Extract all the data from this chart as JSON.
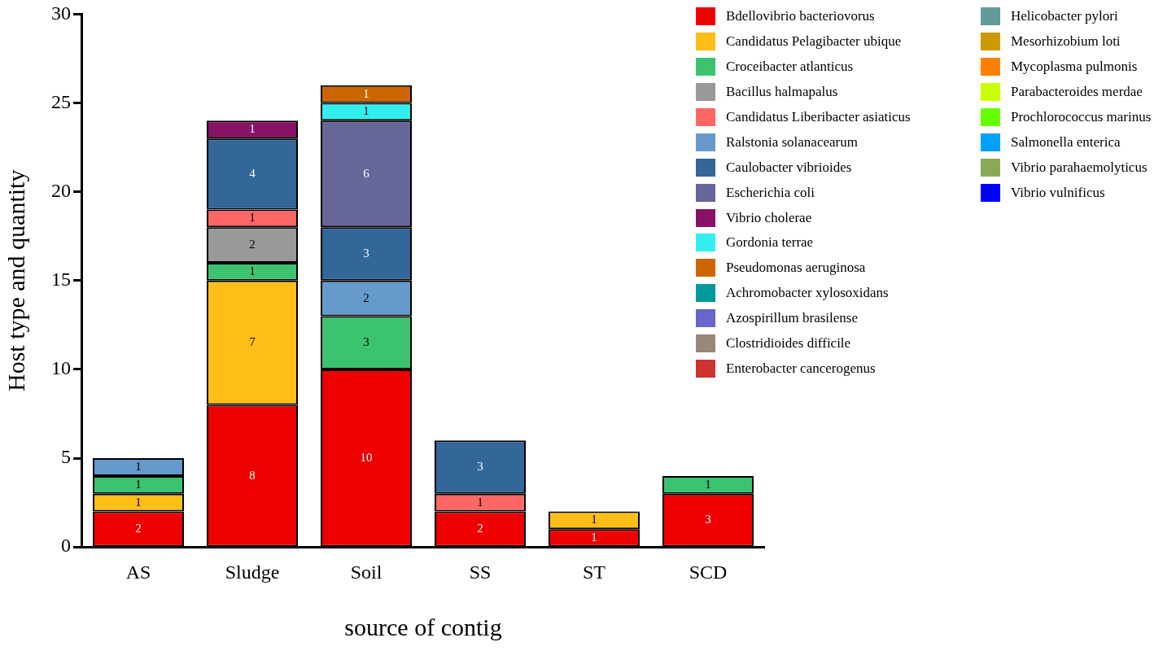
{
  "chart_data": {
    "type": "bar",
    "stacked": true,
    "xlabel": "source of contig",
    "ylabel": "Host type and quantity",
    "categories": [
      "AS",
      "Sludge",
      "Soil",
      "SS",
      "ST",
      "SCD"
    ],
    "ylim": [
      0,
      30
    ],
    "yticks": [
      0,
      5,
      10,
      15,
      20,
      25,
      30
    ],
    "grid": false,
    "legend": "right",
    "data_labels": true,
    "series": [
      {
        "name": "Bdellovibrio bacteriovorus",
        "color": "#ee0000",
        "values": [
          2,
          8,
          10,
          2,
          1,
          3
        ]
      },
      {
        "name": "Candidatus Pelagibacter ubique",
        "color": "#fdbf17",
        "values": [
          1,
          7,
          null,
          null,
          1,
          null
        ]
      },
      {
        "name": "Croceibacter atlanticus",
        "color": "#3cc36f",
        "values": [
          1,
          1,
          3,
          null,
          null,
          1
        ]
      },
      {
        "name": "Bacillus halmapalus",
        "color": "#999999",
        "values": [
          null,
          2,
          null,
          null,
          null,
          null
        ]
      },
      {
        "name": "Candidatus Liberibacter asiaticus",
        "color": "#ff6666",
        "values": [
          null,
          1,
          null,
          1,
          null,
          null
        ]
      },
      {
        "name": "Ralstonia solanacearum",
        "color": "#6699cc",
        "values": [
          1,
          null,
          2,
          null,
          null,
          null
        ]
      },
      {
        "name": "Caulobacter vibrioides",
        "color": "#336699",
        "values": [
          null,
          4,
          3,
          3,
          null,
          null
        ]
      },
      {
        "name": "Escherichia coli",
        "color": "#666699",
        "values": [
          null,
          null,
          6,
          null,
          null,
          null
        ]
      },
      {
        "name": "Vibrio cholerae",
        "color": "#881166",
        "values": [
          null,
          1,
          null,
          null,
          null,
          null
        ]
      },
      {
        "name": "Gordonia terrae",
        "color": "#33eeee",
        "values": [
          null,
          null,
          1,
          null,
          null,
          null
        ]
      },
      {
        "name": "Pseudomonas aeruginosa",
        "color": "#cc6600",
        "values": [
          null,
          null,
          1,
          null,
          null,
          null
        ]
      },
      {
        "name": "Achromobacter xylosoxidans",
        "color": "#009999",
        "values": [
          null,
          null,
          null,
          null,
          null,
          null
        ]
      },
      {
        "name": "Azospirillum brasilense",
        "color": "#6666cc",
        "values": [
          null,
          null,
          null,
          null,
          null,
          null
        ]
      },
      {
        "name": "Clostridioides difficile",
        "color": "#998877",
        "values": [
          null,
          null,
          null,
          null,
          null,
          null
        ]
      },
      {
        "name": "Enterobacter cancerogenus",
        "color": "#cc3333",
        "values": [
          null,
          null,
          null,
          null,
          null,
          null
        ]
      },
      {
        "name": "Helicobacter pylori",
        "color": "#669999",
        "values": [
          null,
          null,
          null,
          null,
          null,
          null
        ]
      },
      {
        "name": "Mesorhizobium loti",
        "color": "#cc9900",
        "values": [
          null,
          null,
          null,
          null,
          null,
          null
        ]
      },
      {
        "name": "Mycoplasma pulmonis",
        "color": "#ff8000",
        "values": [
          null,
          null,
          null,
          null,
          null,
          null
        ]
      },
      {
        "name": "Parabacteroides merdae",
        "color": "#ccff00",
        "values": [
          null,
          null,
          null,
          null,
          null,
          null
        ]
      },
      {
        "name": "Prochlorococcus marinus",
        "color": "#66ff00",
        "values": [
          null,
          null,
          null,
          null,
          null,
          null
        ]
      },
      {
        "name": "Salmonella enterica",
        "color": "#00a0ff",
        "values": [
          null,
          null,
          null,
          null,
          null,
          null
        ]
      },
      {
        "name": "Vibrio parahaemolyticus",
        "color": "#88aa55",
        "values": [
          null,
          null,
          null,
          null,
          null,
          null
        ]
      },
      {
        "name": "Vibrio vulnificus",
        "color": "#0000ff",
        "values": [
          null,
          null,
          null,
          null,
          null,
          null
        ]
      }
    ]
  }
}
